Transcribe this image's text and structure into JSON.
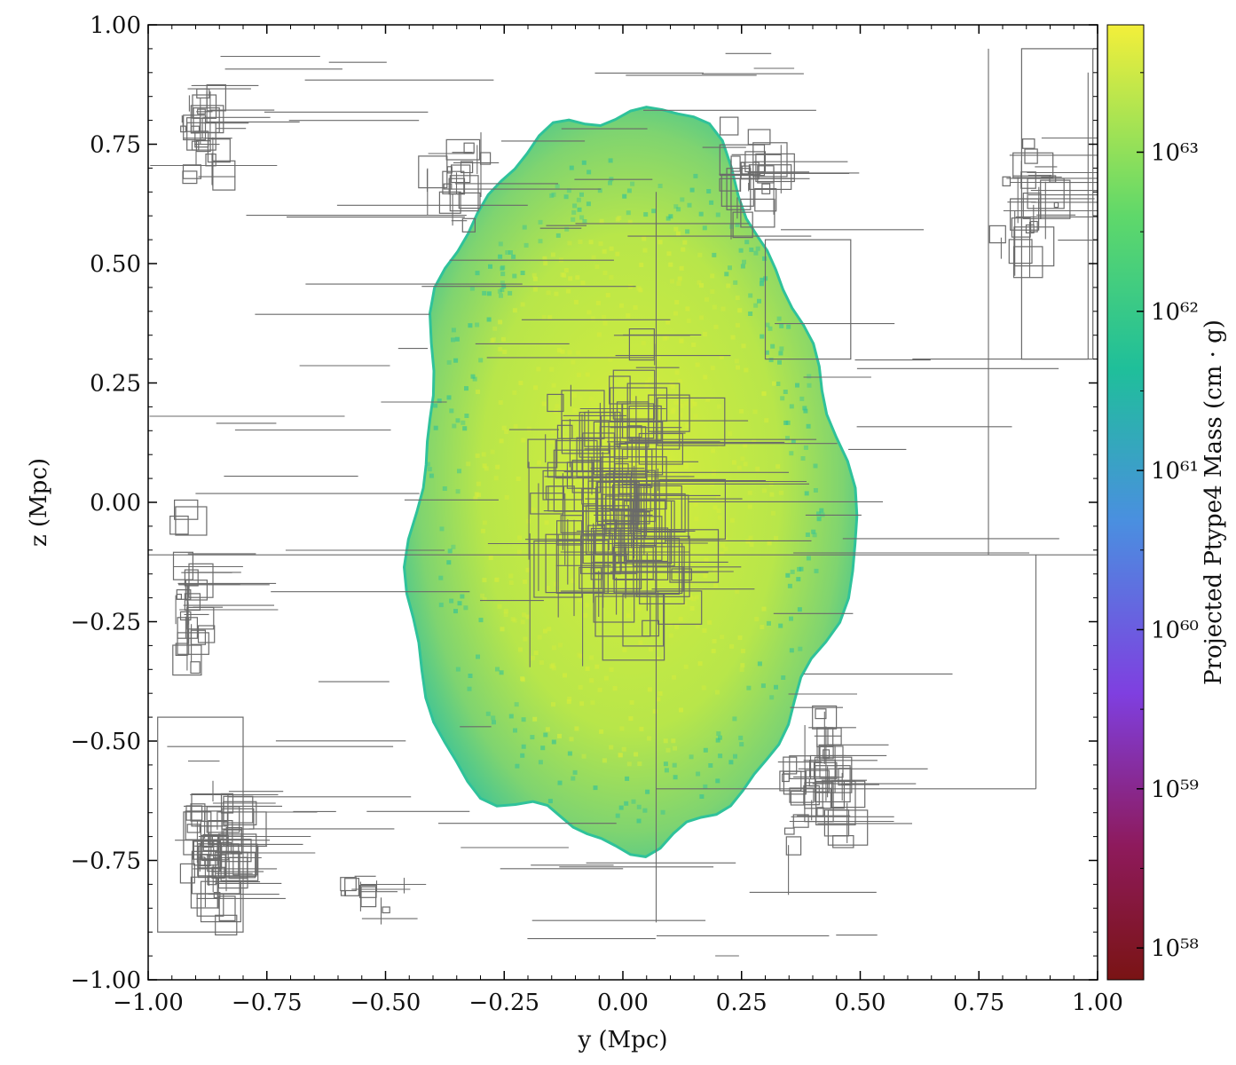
{
  "chart_data": {
    "type": "heatmap",
    "title": "",
    "xlabel": "y  (Mpc)",
    "ylabel": "z  (Mpc)",
    "xlim": [
      -1.0,
      1.0
    ],
    "ylim": [
      -1.0,
      1.0
    ],
    "x_ticks": [
      -1.0,
      -0.75,
      -0.5,
      -0.25,
      0.0,
      0.25,
      0.5,
      0.75,
      1.0
    ],
    "y_ticks": [
      -1.0,
      -0.75,
      -0.5,
      -0.25,
      0.0,
      0.25,
      0.5,
      0.75,
      1.0
    ],
    "x_tick_labels": [
      "−1.00",
      "−0.75",
      "−0.50",
      "−0.25",
      "0.00",
      "0.25",
      "0.50",
      "0.75",
      "1.00"
    ],
    "y_tick_labels": [
      "−1.00",
      "−0.75",
      "−0.50",
      "−0.25",
      "0.00",
      "0.25",
      "0.50",
      "0.75",
      "1.00"
    ],
    "colorbar": {
      "label": "Projected Ptype4 Mass  (cm · g)",
      "scale": "log",
      "range_exponent": [
        57.8,
        63.8
      ],
      "colormap": "plasma-viridis",
      "ticks": [
        58,
        59,
        60,
        61,
        62,
        63
      ],
      "tick_labels": [
        "10⁵⁸",
        "10⁵⁹",
        "10⁶⁰",
        "10⁶¹",
        "10⁶²",
        "10⁶³"
      ],
      "colors": [
        "#7a1414",
        "#8e1a5c",
        "#7f3fe0",
        "#4a8fe0",
        "#1fbf9a",
        "#5fd86a",
        "#f3ef3a"
      ]
    },
    "overlay": "AMR grid boxes (gray outlines)",
    "blob_color_low": "#2fc29a",
    "blob_color_high": "#d6ec3c",
    "grid_color": "#6a6a6a"
  }
}
